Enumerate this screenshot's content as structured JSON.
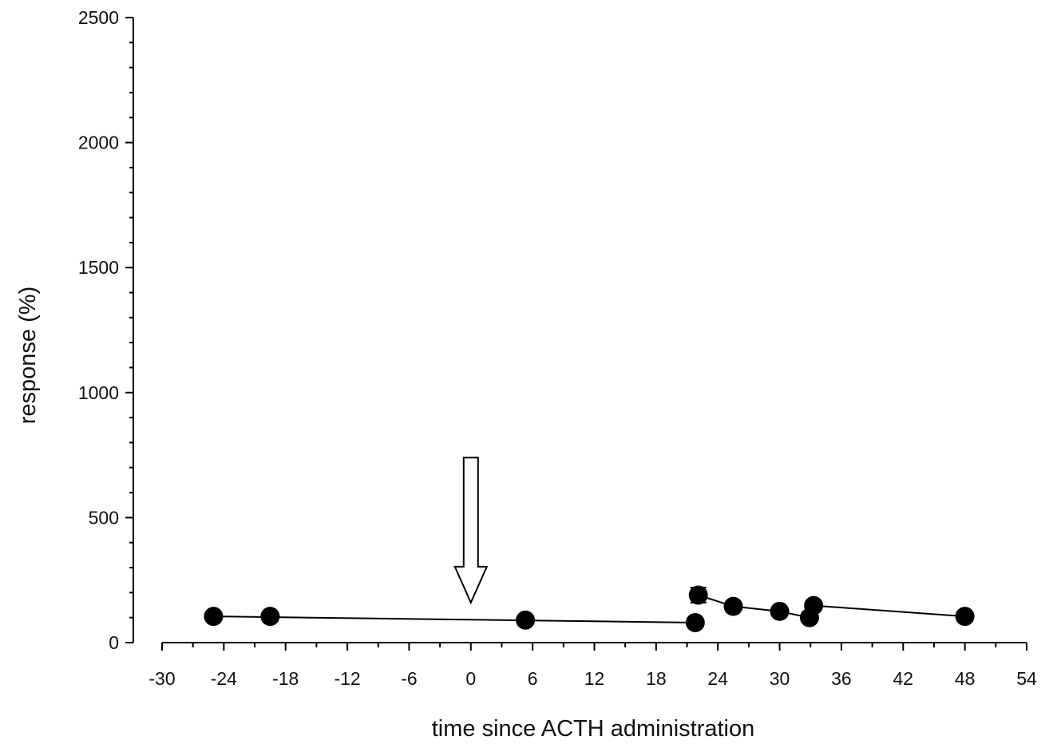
{
  "chart_data": {
    "type": "scatter",
    "title": "",
    "xlabel": "time since ACTH administration",
    "ylabel": "response (%)",
    "xlim": [
      -30,
      54
    ],
    "ylim": [
      0,
      2500
    ],
    "x_ticks": [
      "-30",
      "-24",
      "-18",
      "-12",
      "-6",
      "0",
      "6",
      "12",
      "18",
      "24",
      "30",
      "36",
      "42",
      "48",
      "54"
    ],
    "y_ticks": [
      "0",
      "500",
      "1000",
      "1500",
      "2000",
      "2500"
    ],
    "grid": false,
    "legend": "none",
    "annotations": [
      {
        "type": "arrow-down",
        "x": 0,
        "y_from": 740,
        "y_to": 160
      }
    ],
    "series": [
      {
        "marker_color": "#000000",
        "points": [
          {
            "x": -25,
            "y": 105
          },
          {
            "x": -19.5,
            "y": 105
          },
          {
            "x": 5.3,
            "y": 90
          },
          {
            "x": 21.8,
            "y": 80
          },
          {
            "x": 22.1,
            "y": 190,
            "err": 30
          },
          {
            "x": 25.5,
            "y": 145
          },
          {
            "x": 30,
            "y": 125
          },
          {
            "x": 32.9,
            "y": 100
          },
          {
            "x": 33.3,
            "y": 148
          },
          {
            "x": 48,
            "y": 105
          }
        ],
        "segments": [
          [
            [
              -25,
              105
            ],
            [
              21.8,
              80
            ]
          ],
          [
            [
              22.1,
              190
            ],
            [
              25.5,
              145
            ],
            [
              30,
              125
            ],
            [
              32.9,
              100
            ]
          ],
          [
            [
              33.3,
              148
            ],
            [
              48,
              105
            ]
          ]
        ]
      }
    ]
  }
}
